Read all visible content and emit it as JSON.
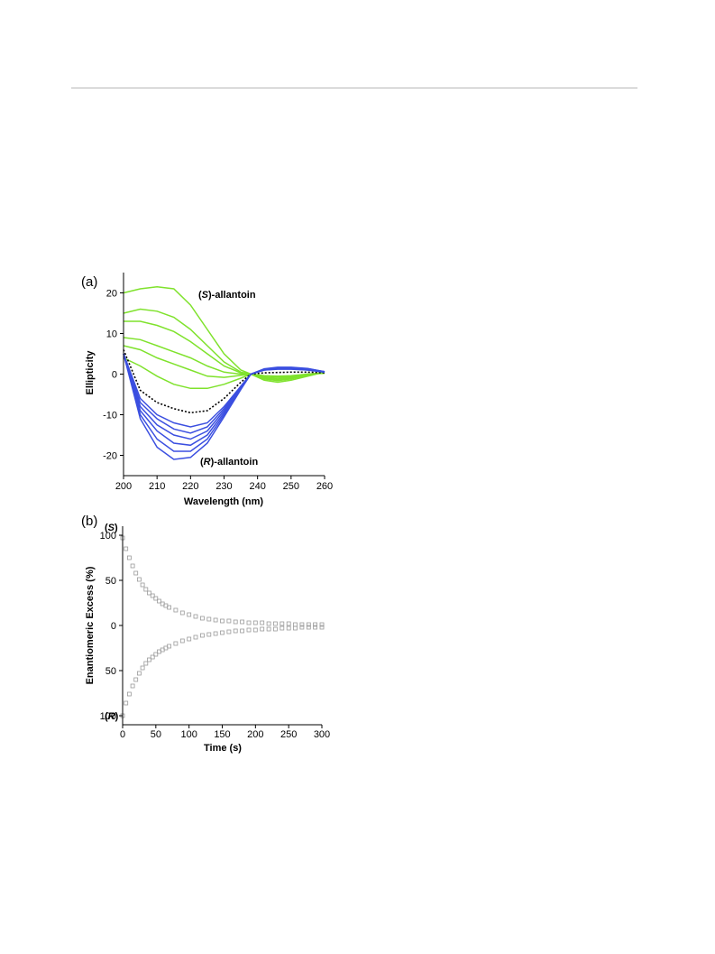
{
  "panels": [
    {
      "label": "(a)",
      "annotations": [
        {
          "prefix": "(",
          "emph": "S",
          "suffix": ")-allantoin"
        },
        {
          "prefix": "(",
          "emph": "R",
          "suffix": ")-allantoin"
        }
      ]
    },
    {
      "label": "(b)",
      "annotations": [
        {
          "prefix": "(",
          "emph": "S",
          "suffix": ")"
        },
        {
          "prefix": "(",
          "emph": "R",
          "suffix": ")"
        }
      ]
    }
  ],
  "chart_data": [
    {
      "type": "line",
      "xlabel": "Wavelength (nm)",
      "ylabel": "Ellipticity",
      "xlim": [
        200,
        260
      ],
      "ylim": [
        -25,
        25
      ],
      "xticks": [
        200,
        210,
        220,
        230,
        240,
        250,
        260
      ],
      "yticks": [
        -20,
        -10,
        0,
        10,
        20
      ],
      "x": [
        200,
        205,
        210,
        215,
        220,
        225,
        230,
        235,
        238,
        242,
        246,
        250,
        255,
        260
      ],
      "colors": {
        "s_series": "#7fe22c",
        "r_series": "#3b4fe0",
        "reference": "#000000"
      },
      "grid": false,
      "series": [
        {
          "group": "s",
          "values": [
            20,
            21,
            21.5,
            21,
            17,
            11,
            5,
            1,
            0,
            -1.5,
            -2,
            -1.5,
            -0.5,
            0.5
          ]
        },
        {
          "group": "s",
          "values": [
            15,
            16,
            15.5,
            14,
            11,
            7,
            3,
            0.5,
            0,
            -1.2,
            -1.6,
            -1.2,
            -0.3,
            0.5
          ]
        },
        {
          "group": "s",
          "values": [
            13,
            13,
            12,
            10.5,
            8,
            5,
            2,
            0.3,
            0,
            -1,
            -1.3,
            -1,
            -0.2,
            0.4
          ]
        },
        {
          "group": "s",
          "values": [
            9,
            8.5,
            7,
            5.5,
            4,
            2,
            0.5,
            0,
            0,
            -0.8,
            -1,
            -0.8,
            -0.1,
            0.3
          ]
        },
        {
          "group": "s",
          "values": [
            7,
            6,
            4,
            2.5,
            1,
            -0.5,
            -0.8,
            -0.3,
            0,
            -0.5,
            -0.7,
            -0.6,
            0,
            0.3
          ]
        },
        {
          "group": "s",
          "values": [
            4,
            2,
            -0.5,
            -2.5,
            -3.5,
            -3.5,
            -2.5,
            -1,
            0,
            -0.4,
            -0.5,
            -0.4,
            0,
            0.2
          ]
        },
        {
          "group": "reference",
          "values": [
            6,
            -4,
            -7,
            -8.5,
            -9.5,
            -9,
            -6,
            -2,
            0,
            0.3,
            0.4,
            0.5,
            0.5,
            0.3
          ]
        },
        {
          "group": "r",
          "values": [
            5,
            -6,
            -10,
            -12,
            -13,
            -12,
            -8,
            -3,
            0,
            1,
            1.2,
            1.2,
            1,
            0.5
          ]
        },
        {
          "group": "r",
          "values": [
            5,
            -7,
            -11,
            -13.5,
            -14.5,
            -13,
            -8.5,
            -3,
            0,
            1,
            1.3,
            1.3,
            1,
            0.5
          ]
        },
        {
          "group": "r",
          "values": [
            5,
            -8,
            -12.5,
            -15,
            -16,
            -14,
            -9,
            -3.2,
            0,
            1.1,
            1.4,
            1.4,
            1.1,
            0.5
          ]
        },
        {
          "group": "r",
          "values": [
            5,
            -9,
            -14,
            -17,
            -17.5,
            -15,
            -9.5,
            -3.4,
            0,
            1.2,
            1.5,
            1.5,
            1.2,
            0.6
          ]
        },
        {
          "group": "r",
          "values": [
            5,
            -10,
            -16,
            -19,
            -19,
            -16,
            -10,
            -3.6,
            0,
            1.2,
            1.6,
            1.6,
            1.3,
            0.6
          ]
        },
        {
          "group": "r",
          "values": [
            5,
            -11,
            -18,
            -21,
            -20.5,
            -17,
            -10.5,
            -3.8,
            0,
            1.3,
            1.7,
            1.7,
            1.4,
            0.6
          ]
        }
      ]
    },
    {
      "type": "scatter",
      "xlabel": "Time (s)",
      "ylabel": "Enantiomeric Excess (%)",
      "xlim": [
        0,
        300
      ],
      "ylim": [
        -110,
        110
      ],
      "xticks": [
        0,
        50,
        100,
        150,
        200,
        250,
        300
      ],
      "yticks": [
        {
          "value": 100,
          "label": "100"
        },
        {
          "value": 50,
          "label": "50"
        },
        {
          "value": 0,
          "label": "0"
        },
        {
          "value": -50,
          "label": "50"
        },
        {
          "value": -100,
          "label": "100"
        }
      ],
      "marker_color": "#9a9a9a",
      "grid": false,
      "series": [
        {
          "group": "s",
          "x": [
            0,
            5,
            10,
            15,
            20,
            25,
            30,
            35,
            40,
            45,
            50,
            55,
            60,
            65,
            70,
            80,
            90,
            100,
            110,
            120,
            130,
            140,
            150,
            160,
            170,
            180,
            190,
            200,
            210,
            220,
            230,
            240,
            250,
            260,
            270,
            280,
            290,
            300
          ],
          "values": [
            97,
            85,
            75,
            66,
            58,
            51,
            45,
            40,
            36,
            33,
            30,
            27,
            24,
            22,
            20,
            17,
            14,
            12,
            10,
            8,
            7,
            6,
            5,
            5,
            4,
            4,
            3,
            3,
            3,
            2,
            2,
            2,
            2,
            1,
            1,
            1,
            1,
            1
          ]
        },
        {
          "group": "r",
          "x": [
            0,
            5,
            10,
            15,
            20,
            25,
            30,
            35,
            40,
            45,
            50,
            55,
            60,
            65,
            70,
            80,
            90,
            100,
            110,
            120,
            130,
            140,
            150,
            160,
            170,
            180,
            190,
            200,
            210,
            220,
            230,
            240,
            250,
            260,
            270,
            280,
            290,
            300
          ],
          "values": [
            -100,
            -86,
            -76,
            -67,
            -60,
            -53,
            -47,
            -42,
            -38,
            -35,
            -32,
            -29,
            -27,
            -25,
            -23,
            -20,
            -17,
            -15,
            -13,
            -11,
            -10,
            -9,
            -8,
            -7,
            -6,
            -6,
            -5,
            -5,
            -4,
            -4,
            -4,
            -3,
            -3,
            -3,
            -2,
            -2,
            -2,
            -2
          ]
        }
      ]
    }
  ]
}
